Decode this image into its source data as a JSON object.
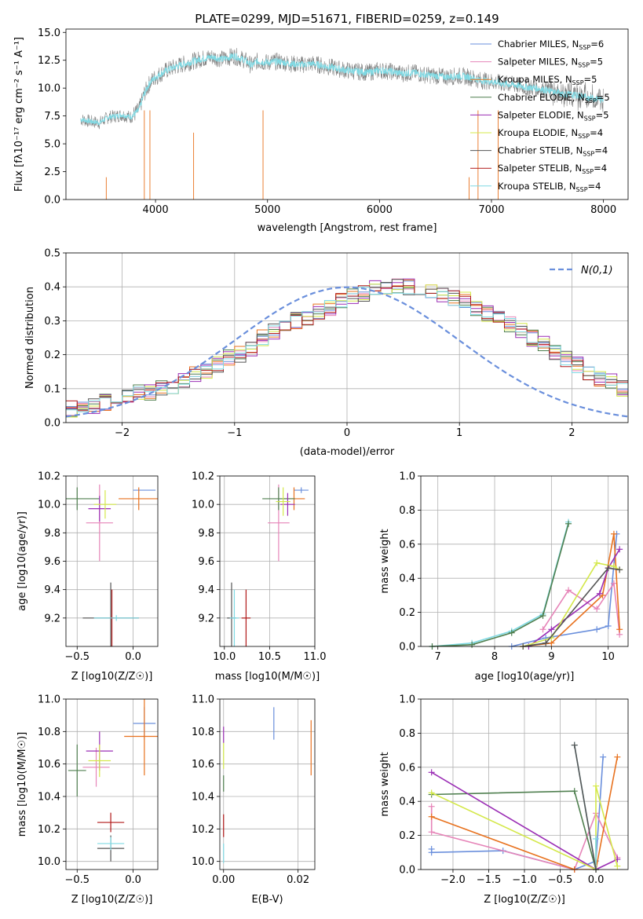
{
  "title": "PLATE=0299, MJD=51671, FIBERID=0259, z=0.149",
  "series": [
    {
      "name": "Chabrier MILES, N$_{SSP}$=6",
      "color": "#6a8fdc",
      "label_main": "Chabrier MILES, N",
      "label_sub": "SSP",
      "label_tail": "=6"
    },
    {
      "name": "Salpeter MILES, N$_{SSP}$=5",
      "color": "#e684b8",
      "label_main": "Salpeter MILES, N",
      "label_sub": "SSP",
      "label_tail": "=5"
    },
    {
      "name": "Kroupa MILES, N$_{SSP}$=5",
      "color": "#e8721f",
      "label_main": "Kroupa MILES, N",
      "label_sub": "SSP",
      "label_tail": "=5"
    },
    {
      "name": "Chabrier ELODIE, N$_{SSP}$=5",
      "color": "#4f7f4f",
      "label_main": "Chabrier ELODIE, N",
      "label_sub": "SSP",
      "label_tail": "=5"
    },
    {
      "name": "Salpeter ELODIE, N$_{SSP}$=5",
      "color": "#9b2fb5",
      "label_main": "Salpeter ELODIE, N",
      "label_sub": "SSP",
      "label_tail": "=5"
    },
    {
      "name": "Kroupa ELODIE, N$_{SSP}$=4",
      "color": "#d4e84a",
      "label_main": "Kroupa ELODIE, N",
      "label_sub": "SSP",
      "label_tail": "=4"
    },
    {
      "name": "Chabrier STELIB, N$_{SSP}$=4",
      "color": "#555555",
      "label_main": "Chabrier STELIB, N",
      "label_sub": "SSP",
      "label_tail": "=4"
    },
    {
      "name": "Salpeter STELIB, N$_{SSP}$=4",
      "color": "#b01818",
      "label_main": "Salpeter STELIB, N",
      "label_sub": "SSP",
      "label_tail": "=4"
    },
    {
      "name": "Kroupa STELIB, N$_{SSP}$=4",
      "color": "#7fd9e3",
      "label_main": "Kroupa STELIB, N",
      "label_sub": "SSP",
      "label_tail": "=4"
    }
  ],
  "chart_data": [
    {
      "type": "line",
      "id": "spectrum",
      "title": "PLATE=0299, MJD=51671, FIBERID=0259, z=0.149",
      "xlabel": "wavelength [Angstrom, rest frame]",
      "ylabel": "Flux [f_λ 10^-17 erg cm^-2 s^-1 A^-1]",
      "xlim": [
        3200,
        8220
      ],
      "ylim": [
        0,
        15.3
      ],
      "xticks": [
        4000,
        5000,
        6000,
        7000,
        8000
      ],
      "yticks": [
        0.0,
        2.5,
        5.0,
        7.5,
        10.0,
        12.5,
        15.0
      ],
      "legend_position": "right",
      "data_color": "#808080",
      "model_color": "#7fd9e3",
      "data_x": [
        3330,
        3420,
        3500,
        3580,
        3650,
        3700,
        3780,
        3850,
        3900,
        3950,
        4000,
        4100,
        4200,
        4300,
        4400,
        4500,
        4600,
        4700,
        4800,
        4860,
        4900,
        5000,
        5100,
        5200,
        5300,
        5400,
        5500,
        5600,
        5700,
        5800,
        5900,
        6000,
        6100,
        6200,
        6300,
        6400,
        6500,
        6600,
        6700,
        6800,
        6900,
        7000,
        7100,
        7200,
        7300,
        7400,
        7500,
        7600,
        7700,
        7800,
        7900,
        8000
      ],
      "data_y": [
        7.2,
        7.0,
        6.9,
        7.4,
        7.5,
        7.6,
        7.4,
        8.0,
        9.5,
        10.5,
        11.0,
        11.6,
        12.0,
        12.3,
        12.6,
        12.8,
        12.6,
        12.9,
        12.5,
        12.0,
        12.4,
        12.3,
        12.4,
        12.2,
        12.1,
        12.2,
        12.0,
        11.8,
        11.6,
        11.5,
        11.4,
        11.6,
        11.5,
        11.3,
        11.4,
        11.2,
        11.1,
        11.0,
        11.1,
        11.0,
        10.7,
        10.6,
        10.4,
        10.3,
        10.1,
        10.0,
        9.8,
        9.6,
        9.4,
        9.3,
        9.1,
        8.9
      ]
    },
    {
      "type": "line",
      "id": "residuals",
      "xlabel": "(data-model)/error",
      "ylabel": "Normed distribution",
      "xlim": [
        -2.5,
        2.5
      ],
      "ylim": [
        0.0,
        0.5
      ],
      "xticks": [
        -2,
        -1,
        0,
        1,
        2
      ],
      "yticks": [
        0.0,
        0.1,
        0.2,
        0.3,
        0.4,
        0.5
      ],
      "grid": true,
      "legend_position": "top-right",
      "reference_label": "N(0,1)",
      "reference_color": "#6a8fdc",
      "bin_width": 0.1,
      "x_start": -2.5,
      "hist_values": [
        0.04,
        0.04,
        0.05,
        0.06,
        0.07,
        0.08,
        0.09,
        0.09,
        0.1,
        0.11,
        0.12,
        0.14,
        0.15,
        0.17,
        0.19,
        0.2,
        0.22,
        0.25,
        0.27,
        0.28,
        0.3,
        0.31,
        0.33,
        0.34,
        0.36,
        0.37,
        0.38,
        0.4,
        0.4,
        0.4,
        0.4,
        0.4,
        0.39,
        0.38,
        0.37,
        0.36,
        0.34,
        0.32,
        0.31,
        0.29,
        0.27,
        0.25,
        0.23,
        0.21,
        0.19,
        0.17,
        0.15,
        0.13,
        0.12,
        0.1,
        0.09,
        0.08,
        0.07,
        0.06,
        0.05,
        0.04,
        0.04,
        0.03,
        0.03,
        0.02
      ]
    },
    {
      "type": "scatter",
      "id": "age_vs_Z",
      "xlabel": "Z [log10(Z/Z☉)]",
      "ylabel": "age [log10(age/yr)]",
      "xlim": [
        -0.6,
        0.22
      ],
      "ylim": [
        9.0,
        10.2
      ],
      "xticks": [
        -0.5,
        0.0
      ],
      "yticks": [
        9.2,
        9.4,
        9.6,
        9.8,
        10.0,
        10.2
      ],
      "points": [
        {
          "series": 0,
          "x": 0.1,
          "y": 10.1,
          "xerr": 0.1,
          "yerr": 0.0
        },
        {
          "series": 1,
          "x": -0.3,
          "y": 9.87,
          "xerr": 0.12,
          "yerr": 0.27
        },
        {
          "series": 2,
          "x": 0.05,
          "y": 10.04,
          "xerr": 0.18,
          "yerr": 0.08
        },
        {
          "series": 3,
          "x": -0.5,
          "y": 10.04,
          "xerr": 0.2,
          "yerr": 0.08
        },
        {
          "series": 4,
          "x": -0.3,
          "y": 9.97,
          "xerr": 0.1,
          "yerr": 0.09
        },
        {
          "series": 5,
          "x": -0.25,
          "y": 10.0,
          "xerr": 0.1,
          "yerr": 0.1
        },
        {
          "series": 6,
          "x": -0.2,
          "y": 9.2,
          "xerr": 0.25,
          "yerr": 0.25
        },
        {
          "series": 7,
          "x": -0.19,
          "y": 9.2,
          "xerr": 0.02,
          "yerr": 0.2
        },
        {
          "series": 8,
          "x": -0.15,
          "y": 9.2,
          "xerr": 0.2,
          "yerr": 0.02
        }
      ]
    },
    {
      "type": "scatter",
      "id": "age_vs_mass",
      "xlabel": "mass [log10(M/M☉)]",
      "ylabel": "",
      "xlim": [
        9.95,
        11.0
      ],
      "ylim": [
        9.0,
        10.2
      ],
      "xticks": [
        10.0,
        10.5,
        11.0
      ],
      "yticks": [
        9.2,
        9.4,
        9.6,
        9.8,
        10.0,
        10.2
      ],
      "points": [
        {
          "series": 0,
          "x": 10.85,
          "y": 10.1,
          "xerr": 0.08,
          "yerr": 0.02
        },
        {
          "series": 1,
          "x": 10.6,
          "y": 9.87,
          "xerr": 0.12,
          "yerr": 0.27
        },
        {
          "series": 2,
          "x": 10.77,
          "y": 10.04,
          "xerr": 0.12,
          "yerr": 0.08
        },
        {
          "series": 3,
          "x": 10.6,
          "y": 10.04,
          "xerr": 0.18,
          "yerr": 0.08
        },
        {
          "series": 4,
          "x": 10.7,
          "y": 10.0,
          "xerr": 0.08,
          "yerr": 0.08
        },
        {
          "series": 5,
          "x": 10.65,
          "y": 10.02,
          "xerr": 0.08,
          "yerr": 0.1
        },
        {
          "series": 6,
          "x": 10.08,
          "y": 9.2,
          "xerr": 0.05,
          "yerr": 0.25
        },
        {
          "series": 7,
          "x": 10.24,
          "y": 9.2,
          "xerr": 0.05,
          "yerr": 0.2
        },
        {
          "series": 8,
          "x": 10.11,
          "y": 9.2,
          "xerr": 0.05,
          "yerr": 0.2
        }
      ]
    },
    {
      "type": "line",
      "id": "weight_vs_age",
      "xlabel": "age  [log10(age/yr)]",
      "ylabel": "mass weight",
      "xlim": [
        6.7,
        10.35
      ],
      "ylim": [
        0.0,
        1.0
      ],
      "xticks": [
        7,
        8,
        9,
        10
      ],
      "yticks": [
        0.0,
        0.2,
        0.4,
        0.6,
        0.8,
        1.0
      ],
      "grid": true,
      "lines": [
        {
          "series": 8,
          "x": [
            6.9,
            7.6,
            8.3,
            8.85,
            9.3
          ],
          "y": [
            0.0,
            0.02,
            0.09,
            0.19,
            0.73
          ]
        },
        {
          "series": 3,
          "x": [
            6.9,
            7.6,
            8.3,
            8.85,
            9.3
          ],
          "y": [
            0.0,
            0.01,
            0.08,
            0.18,
            0.72
          ]
        },
        {
          "series": 0,
          "x": [
            8.3,
            8.9,
            9.8,
            10.0,
            10.15
          ],
          "y": [
            0.0,
            0.05,
            0.1,
            0.12,
            0.66
          ]
        },
        {
          "series": 1,
          "x": [
            8.85,
            9.3,
            9.8,
            10.1,
            10.2
          ],
          "y": [
            0.1,
            0.33,
            0.22,
            0.37,
            0.07
          ]
        },
        {
          "series": 2,
          "x": [
            8.5,
            9.0,
            9.9,
            10.1,
            10.2
          ],
          "y": [
            0.0,
            0.02,
            0.3,
            0.66,
            0.1
          ]
        },
        {
          "series": 4,
          "x": [
            8.6,
            9.0,
            9.85,
            10.0,
            10.2
          ],
          "y": [
            0.0,
            0.1,
            0.31,
            0.46,
            0.57
          ]
        },
        {
          "series": 5,
          "x": [
            8.5,
            9.0,
            9.8,
            10.1,
            10.2
          ],
          "y": [
            0.0,
            0.05,
            0.49,
            0.47,
            0.45
          ]
        },
        {
          "series": 6,
          "x": [
            8.5,
            8.9,
            10.0,
            10.2
          ],
          "y": [
            0.0,
            0.02,
            0.46,
            0.45
          ]
        }
      ]
    },
    {
      "type": "scatter",
      "id": "mass_vs_Z",
      "xlabel": "Z [log10(Z/Z☉)]",
      "ylabel": "mass [log10(M/M☉)]",
      "xlim": [
        -0.6,
        0.22
      ],
      "ylim": [
        9.95,
        11.0
      ],
      "xticks": [
        -0.5,
        0.0
      ],
      "yticks": [
        10.0,
        10.2,
        10.4,
        10.6,
        10.8,
        11.0
      ],
      "points": [
        {
          "series": 0,
          "x": 0.1,
          "y": 10.85,
          "xerr": 0.1,
          "yerr": 0.1
        },
        {
          "series": 1,
          "x": -0.33,
          "y": 10.58,
          "xerr": 0.12,
          "yerr": 0.12
        },
        {
          "series": 2,
          "x": 0.1,
          "y": 10.77,
          "xerr": 0.18,
          "yerr": 0.24
        },
        {
          "series": 3,
          "x": -0.5,
          "y": 10.56,
          "xerr": 0.08,
          "yerr": 0.16
        },
        {
          "series": 4,
          "x": -0.3,
          "y": 10.68,
          "xerr": 0.12,
          "yerr": 0.12
        },
        {
          "series": 5,
          "x": -0.3,
          "y": 10.62,
          "xerr": 0.1,
          "yerr": 0.1
        },
        {
          "series": 6,
          "x": -0.2,
          "y": 10.08,
          "xerr": 0.12,
          "yerr": 0.08
        },
        {
          "series": 7,
          "x": -0.2,
          "y": 10.24,
          "xerr": 0.12,
          "yerr": 0.06
        },
        {
          "series": 8,
          "x": -0.2,
          "y": 10.11,
          "xerr": 0.12,
          "yerr": 0.04
        }
      ]
    },
    {
      "type": "scatter",
      "id": "mass_vs_EBV",
      "xlabel": "E(B-V)",
      "ylabel": "",
      "xlim": [
        -0.001,
        0.0245
      ],
      "ylim": [
        9.95,
        11.0
      ],
      "xticks": [
        0.0,
        0.02
      ],
      "yticks": [
        10.0,
        10.2,
        10.4,
        10.6,
        10.8,
        11.0
      ],
      "points": [
        {
          "series": 0,
          "x": 0.0135,
          "y": 10.85,
          "xerr": 0.0,
          "yerr": 0.1
        },
        {
          "series": 2,
          "x": 0.0235,
          "y": 10.7,
          "xerr": 0.0,
          "yerr": 0.17
        },
        {
          "series": 4,
          "x": 0.0,
          "y": 10.78,
          "xerr": 0.0,
          "yerr": 0.05
        },
        {
          "series": 5,
          "x": 0.0,
          "y": 10.65,
          "xerr": 0.0,
          "yerr": 0.08
        },
        {
          "series": 3,
          "x": 0.0,
          "y": 10.48,
          "xerr": 0.0,
          "yerr": 0.05
        },
        {
          "series": 7,
          "x": 0.0,
          "y": 10.22,
          "xerr": 0.0,
          "yerr": 0.07
        },
        {
          "series": 8,
          "x": 0.0,
          "y": 10.05,
          "xerr": 0.0,
          "yerr": 0.06
        }
      ]
    },
    {
      "type": "line",
      "id": "weight_vs_Z",
      "xlabel": "Z [log10(Z/Z☉)]",
      "ylabel": "mass weight",
      "xlim": [
        -2.45,
        0.45
      ],
      "ylim": [
        0.0,
        1.0
      ],
      "xticks": [
        -2.0,
        -1.5,
        -1.0,
        -0.5,
        0.0
      ],
      "yticks": [
        0.0,
        0.2,
        0.4,
        0.6,
        0.8,
        1.0
      ],
      "grid": true,
      "lines": [
        {
          "series": 0,
          "x": [
            -2.3,
            -2.3,
            -1.3,
            -0.3,
            0.0,
            0.1
          ],
          "y": [
            0.12,
            0.1,
            0.11,
            0.0,
            0.05,
            0.66
          ]
        },
        {
          "series": 1,
          "x": [
            -2.3,
            -2.3,
            -0.3,
            0.0,
            0.3
          ],
          "y": [
            0.37,
            0.22,
            0.0,
            0.33,
            0.07
          ]
        },
        {
          "series": 2,
          "x": [
            -2.3,
            -0.3,
            0.0,
            0.3
          ],
          "y": [
            0.31,
            0.0,
            0.0,
            0.66
          ]
        },
        {
          "series": 3,
          "x": [
            -2.3,
            -0.3,
            0.0
          ],
          "y": [
            0.44,
            0.46,
            0.0
          ]
        },
        {
          "series": 4,
          "x": [
            -2.3,
            0.0,
            0.3
          ],
          "y": [
            0.57,
            0.0,
            0.06
          ]
        },
        {
          "series": 5,
          "x": [
            -2.3,
            0.0,
            0.0,
            0.3
          ],
          "y": [
            0.45,
            0.0,
            0.49,
            0.02
          ]
        },
        {
          "series": 8,
          "x": [
            -0.3,
            0.0,
            0.0
          ],
          "y": [
            0.73,
            0.0,
            0.18
          ]
        },
        {
          "series": 6,
          "x": [
            -0.3,
            0.0
          ],
          "y": [
            0.73,
            0.0
          ]
        }
      ]
    }
  ]
}
